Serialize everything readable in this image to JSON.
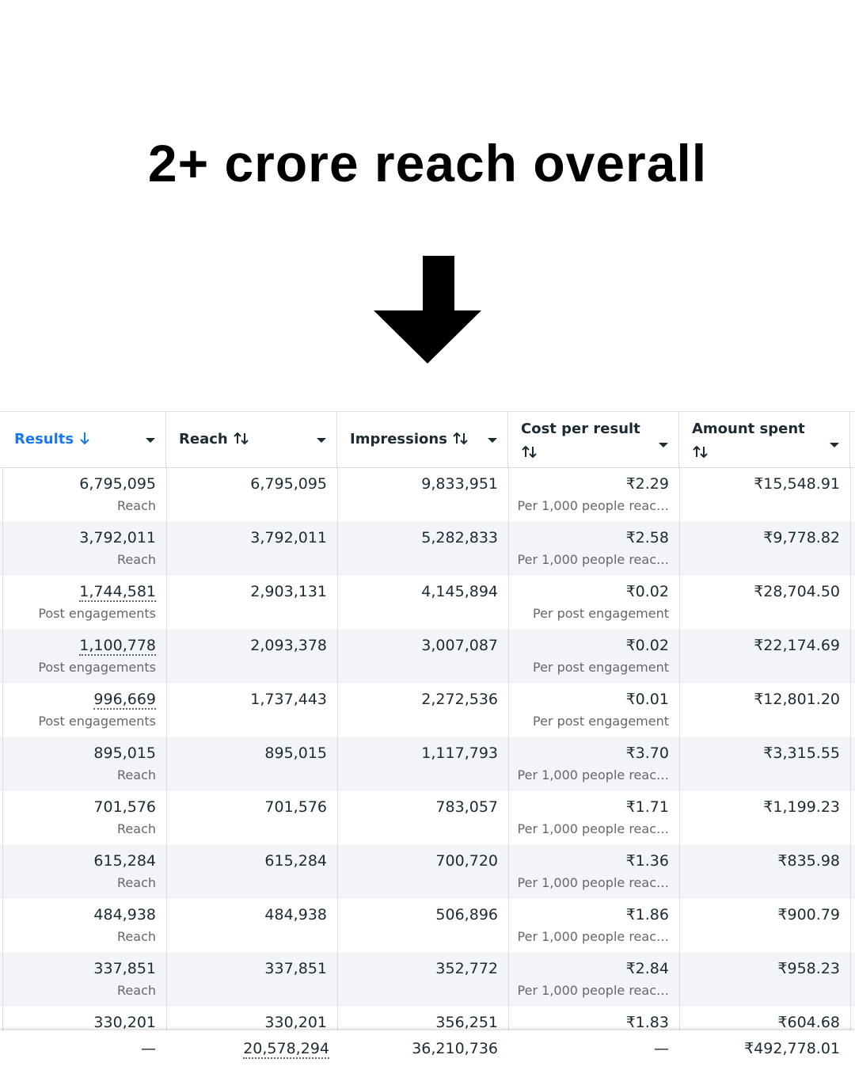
{
  "header": {
    "title": "2+ crore reach overall"
  },
  "table": {
    "columns": [
      "Results",
      "Reach",
      "Impressions",
      "Cost per result",
      "Amount spent"
    ],
    "rows": [
      {
        "results": "6,795,095",
        "results_label": "Reach",
        "reach": "6,795,095",
        "impressions": "9,833,951",
        "cost": "₹2.29",
        "cost_label": "Per 1,000 people reac…",
        "spent": "₹15,548.91"
      },
      {
        "results": "3,792,011",
        "results_label": "Reach",
        "reach": "3,792,011",
        "impressions": "5,282,833",
        "cost": "₹2.58",
        "cost_label": "Per 1,000 people reac…",
        "spent": "₹9,778.82"
      },
      {
        "results": "1,744,581",
        "results_label": "Post engagements",
        "reach": "2,903,131",
        "impressions": "4,145,894",
        "cost": "₹0.02",
        "cost_label": "Per post engagement",
        "spent": "₹28,704.50"
      },
      {
        "results": "1,100,778",
        "results_label": "Post engagements",
        "reach": "2,093,378",
        "impressions": "3,007,087",
        "cost": "₹0.02",
        "cost_label": "Per post engagement",
        "spent": "₹22,174.69"
      },
      {
        "results": "996,669",
        "results_label": "Post engagements",
        "reach": "1,737,443",
        "impressions": "2,272,536",
        "cost": "₹0.01",
        "cost_label": "Per post engagement",
        "spent": "₹12,801.20"
      },
      {
        "results": "895,015",
        "results_label": "Reach",
        "reach": "895,015",
        "impressions": "1,117,793",
        "cost": "₹3.70",
        "cost_label": "Per 1,000 people reac…",
        "spent": "₹3,315.55"
      },
      {
        "results": "701,576",
        "results_label": "Reach",
        "reach": "701,576",
        "impressions": "783,057",
        "cost": "₹1.71",
        "cost_label": "Per 1,000 people reac…",
        "spent": "₹1,199.23"
      },
      {
        "results": "615,284",
        "results_label": "Reach",
        "reach": "615,284",
        "impressions": "700,720",
        "cost": "₹1.36",
        "cost_label": "Per 1,000 people reac…",
        "spent": "₹835.98"
      },
      {
        "results": "484,938",
        "results_label": "Reach",
        "reach": "484,938",
        "impressions": "506,896",
        "cost": "₹1.86",
        "cost_label": "Per 1,000 people reac…",
        "spent": "₹900.79"
      },
      {
        "results": "337,851",
        "results_label": "Reach",
        "reach": "337,851",
        "impressions": "352,772",
        "cost": "₹2.84",
        "cost_label": "Per 1,000 people reac…",
        "spent": "₹958.23"
      },
      {
        "results": "330,201",
        "reach": "330,201",
        "impressions": "356,251",
        "cost": "₹1.83",
        "spent": "₹604.68"
      }
    ],
    "totals": {
      "results": "—",
      "reach": "20,578,294",
      "impressions": "36,210,736",
      "cost": "—",
      "spent": "₹492,778.01"
    }
  }
}
